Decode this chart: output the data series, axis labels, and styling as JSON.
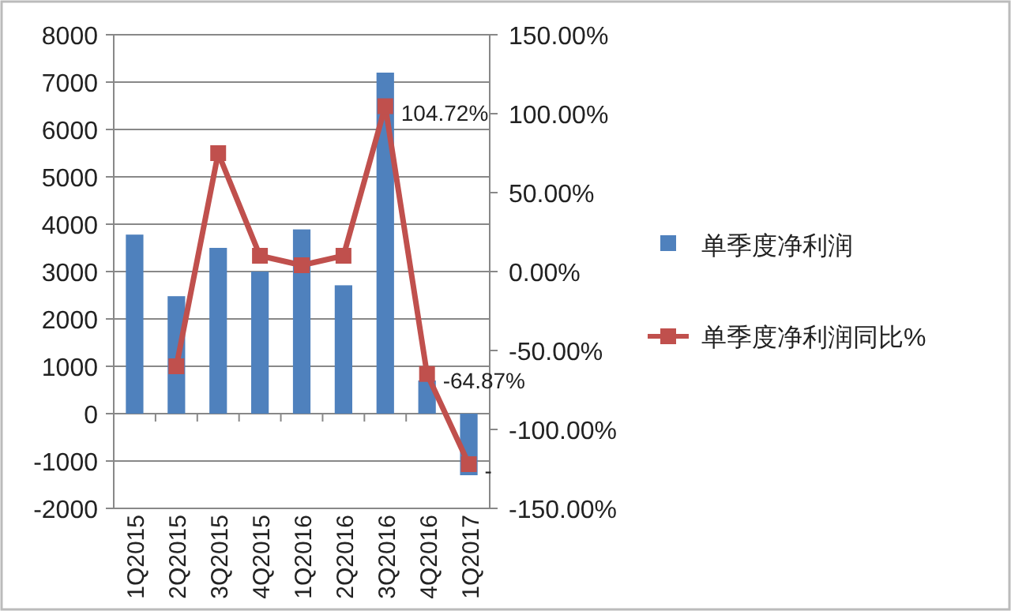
{
  "chart_data": {
    "type": "bar",
    "categories": [
      "1Q2015",
      "2Q2015",
      "3Q2015",
      "4Q2015",
      "1Q2016",
      "2Q2016",
      "3Q2016",
      "4Q2016",
      "1Q2017"
    ],
    "series": [
      {
        "name": "单季度净利润",
        "color": "#4f81bd",
        "values": [
          3780,
          2480,
          3500,
          3000,
          3890,
          2710,
          7200,
          700,
          -1300
        ]
      },
      {
        "name": "单季度净利润同比%",
        "type": "line",
        "axis": "y2",
        "color": "#c0504d",
        "values": [
          null,
          -60,
          75,
          10,
          4,
          10,
          104.72,
          -64.87,
          -122
        ],
        "value_labels": [
          null,
          null,
          null,
          null,
          null,
          null,
          "104.72%",
          "-64.87%",
          "-"
        ]
      }
    ],
    "ylim": [
      -2000,
      8000
    ],
    "yticks": [
      -2000,
      -1000,
      0,
      1000,
      2000,
      3000,
      4000,
      5000,
      6000,
      7000,
      8000
    ],
    "y2lim": [
      -150,
      150
    ],
    "y2ticks": [
      {
        "value": -150,
        "label": "-150.00%"
      },
      {
        "value": -100,
        "label": "-100.00%"
      },
      {
        "value": -50,
        "label": "-50.00%"
      },
      {
        "value": 0,
        "label": "0.00%"
      },
      {
        "value": 50,
        "label": "50.00%"
      },
      {
        "value": 100,
        "label": "100.00%"
      },
      {
        "value": 150,
        "label": "150.00%"
      }
    ],
    "grid": "y",
    "legend": "right",
    "marker": "square",
    "line_style": "solid"
  }
}
